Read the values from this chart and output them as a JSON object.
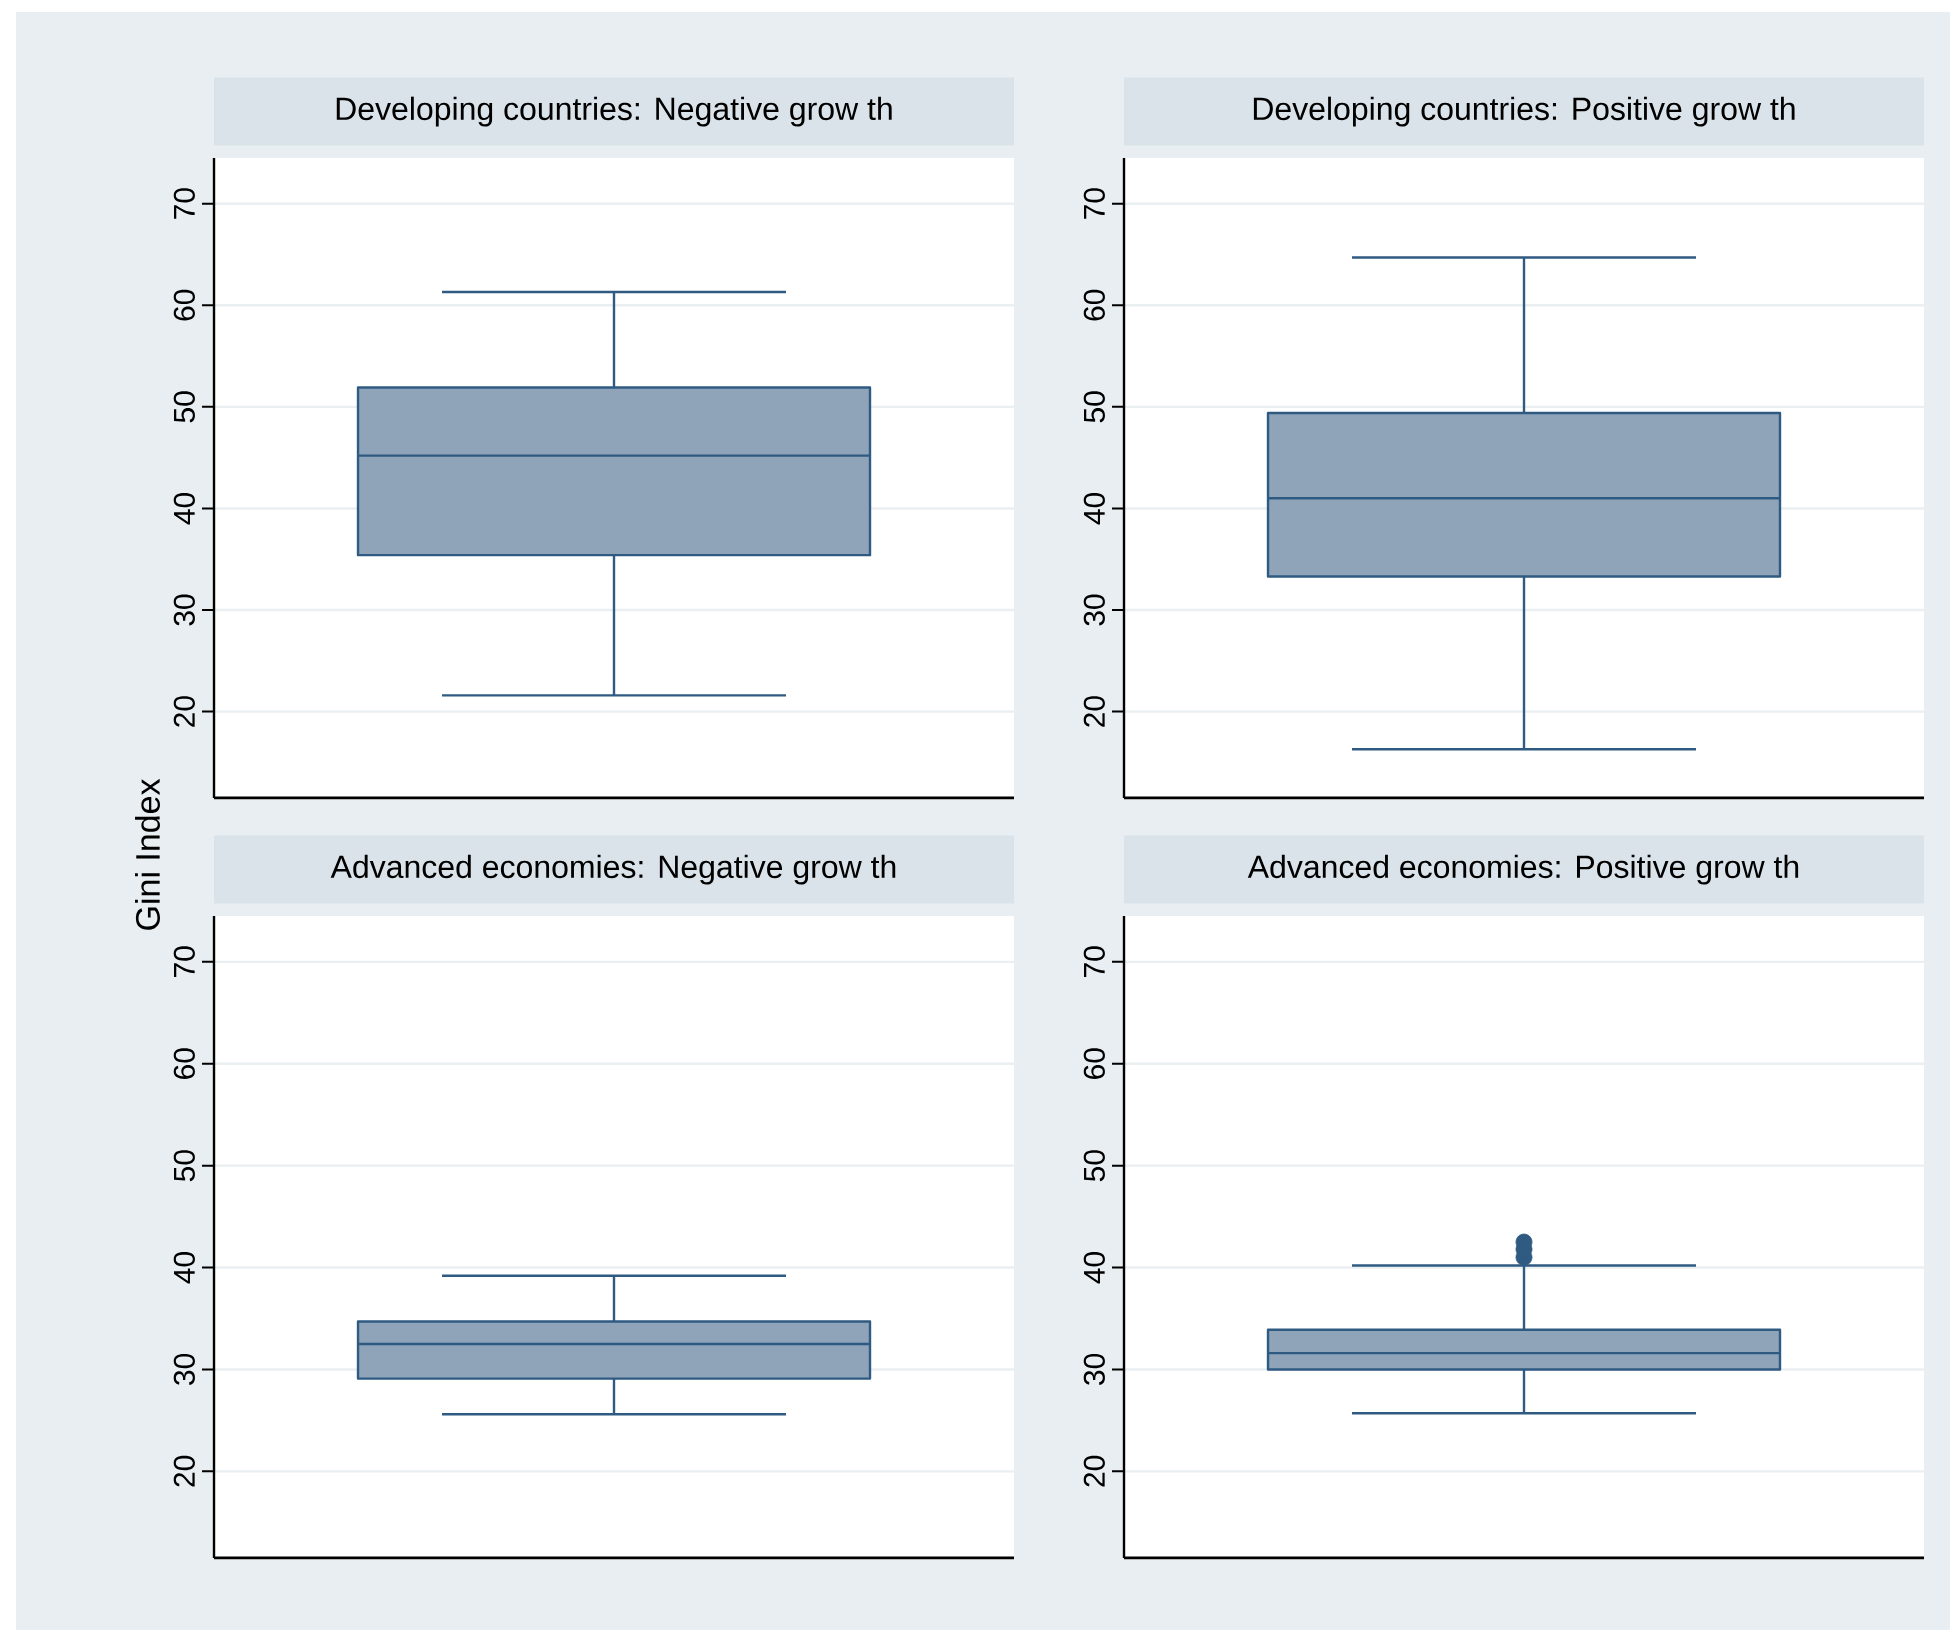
{
  "chart_data": [
    {
      "type": "box",
      "title": "Developing countries: Negative grow th",
      "categories": [
        null
      ],
      "color": "#8fa4b8",
      "grid": "y",
      "tick_labels": "y",
      "ylim": [
        11.5,
        74.5
      ],
      "yticks": [
        20,
        30,
        40,
        50,
        60,
        70
      ],
      "boxes": [
        {
          "low": 21.6,
          "q1": 35.4,
          "median": 45.2,
          "q3": 51.9,
          "high": 61.3
        }
      ]
    },
    {
      "type": "box",
      "title": "Developing countries: Positive grow th",
      "categories": [
        null
      ],
      "color": "#8fa4b8",
      "grid": "y",
      "tick_labels": "y",
      "ylim": [
        11.5,
        74.5
      ],
      "yticks": [
        20,
        30,
        40,
        50,
        60,
        70
      ],
      "boxes": [
        {
          "low": 16.3,
          "q1": 33.3,
          "median": 41.0,
          "q3": 49.4,
          "high": 64.7
        }
      ]
    },
    {
      "type": "box",
      "title": "Advanced economies: Negative grow th",
      "ylabel": "Gini Index",
      "categories": [
        null
      ],
      "color": "#8fa4b8",
      "grid": "y",
      "tick_labels": "y",
      "ylim": [
        11.5,
        74.5
      ],
      "yticks": [
        20,
        30,
        40,
        50,
        60,
        70
      ],
      "boxes": [
        {
          "low": 25.6,
          "q1": 29.1,
          "median": 32.5,
          "q3": 34.7,
          "high": 39.2
        }
      ]
    },
    {
      "type": "box",
      "title": "Advanced economies: Positive grow th",
      "categories": [
        null
      ],
      "color": "#8fa4b8",
      "grid": "y",
      "tick_labels": "y",
      "ylim": [
        11.5,
        74.5
      ],
      "yticks": [
        20,
        30,
        40,
        50,
        60,
        70
      ],
      "boxes": [
        {
          "low": 25.7,
          "q1": 30.0,
          "median": 31.6,
          "q3": 33.9,
          "high": 40.2,
          "outliers": [
            41.0,
            41.8,
            42.5
          ]
        }
      ]
    }
  ]
}
